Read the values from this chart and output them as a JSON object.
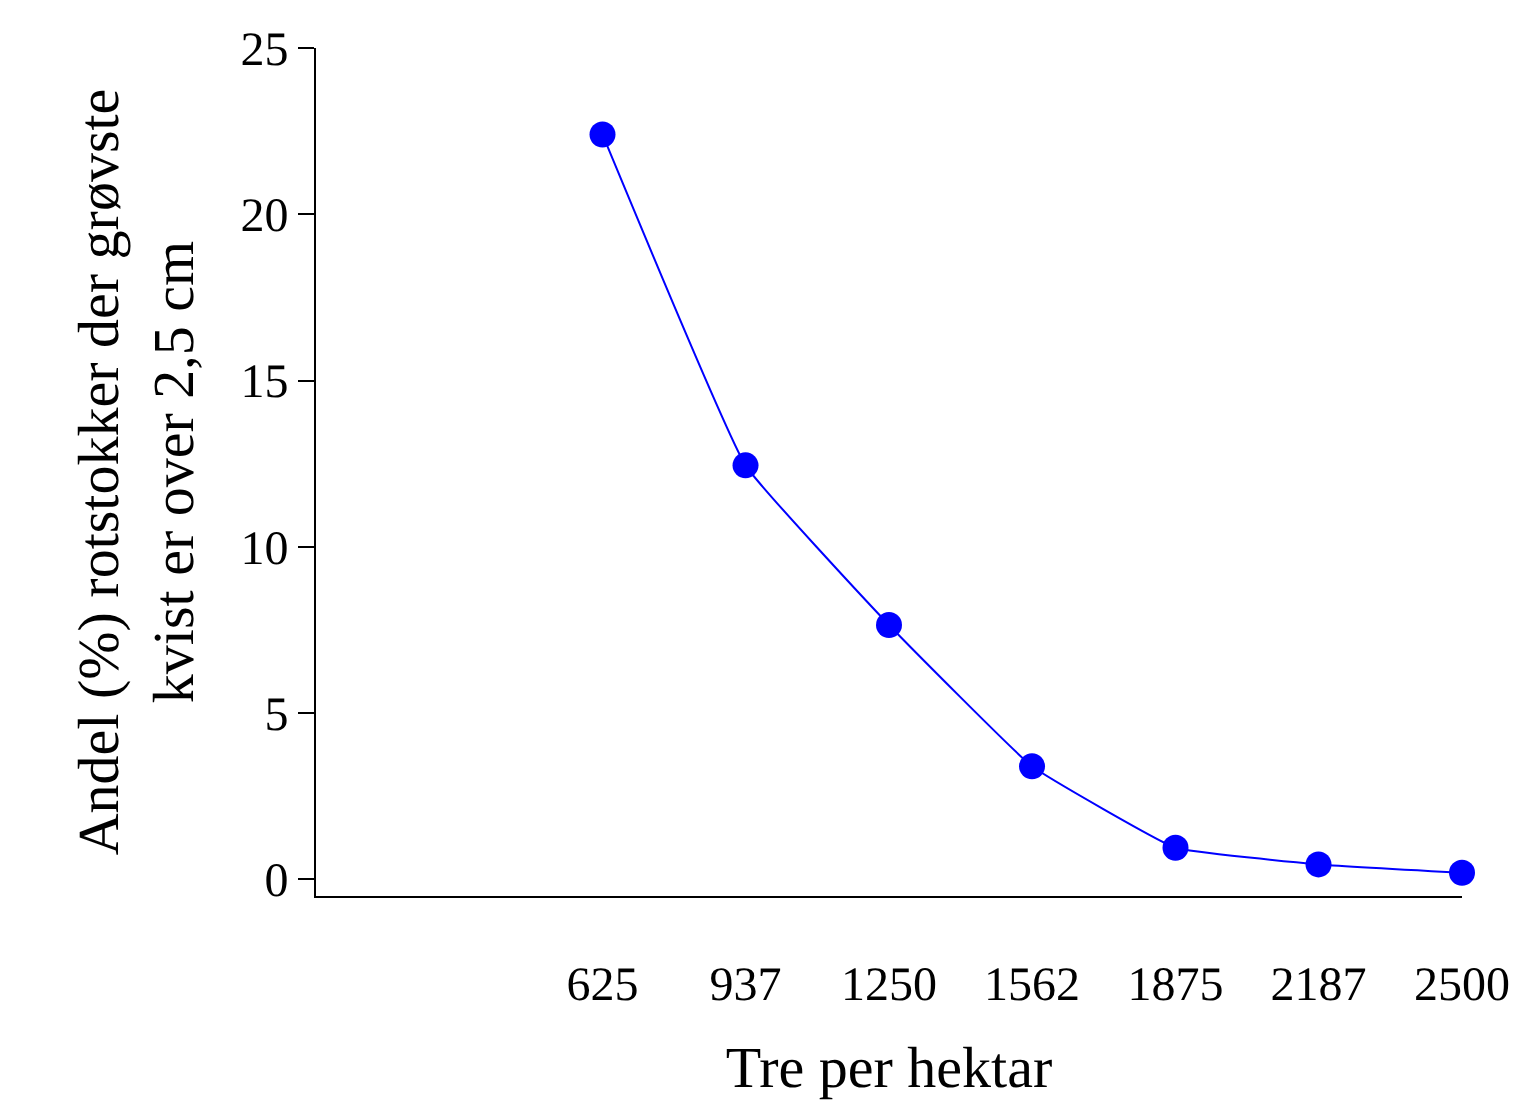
{
  "chart_data": {
    "type": "line",
    "xlabel": "Tre per hektar",
    "ylabel": "Andel (%) rotstokker der grøvste\nkvist er over 2,5 cm",
    "x": [
      625,
      937,
      1250,
      1562,
      1875,
      2187,
      2500
    ],
    "series": [
      {
        "color": "#0000ff",
        "values": [
          22.4,
          12.45,
          7.65,
          3.4,
          0.95,
          0.45,
          0.2
        ]
      }
    ],
    "xlim": [
      0,
      2500
    ],
    "xticks": [
      625,
      937,
      1250,
      1562,
      1875,
      2187,
      2500
    ],
    "ylim": [
      -0.5,
      25
    ],
    "yticks": [
      0,
      5,
      10,
      15,
      20,
      25
    ],
    "legend": false,
    "marker": "circle",
    "line_style": "solid"
  }
}
